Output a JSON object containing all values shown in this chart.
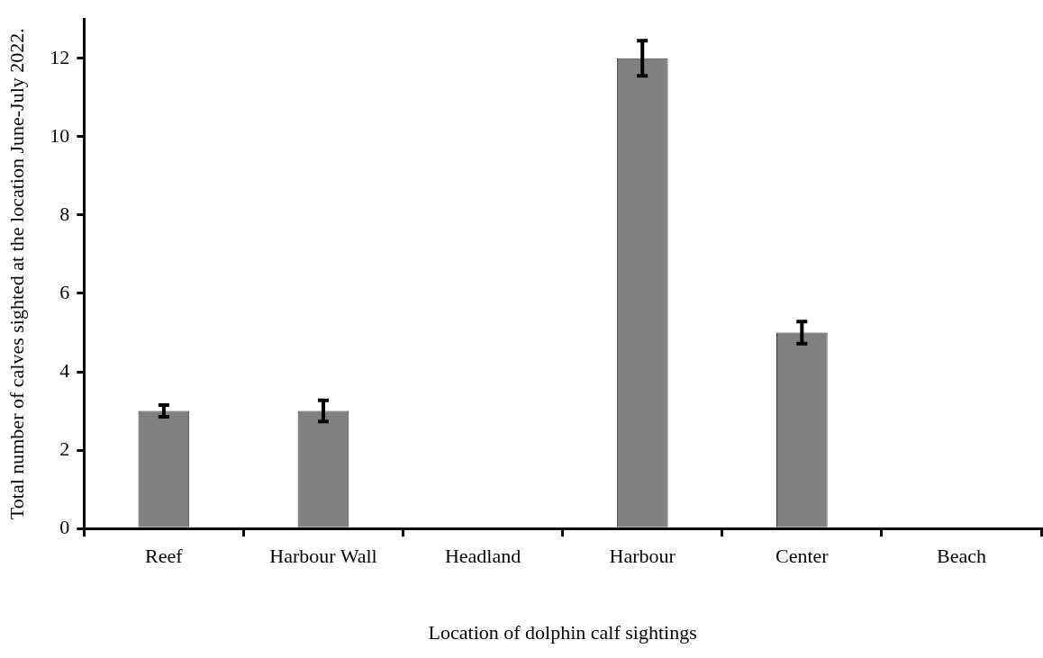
{
  "chart_data": {
    "type": "bar",
    "xlabel": "Location of dolphin calf sightings",
    "ylabel": "Total number of calves sighted at the location June-July 2022.",
    "categories": [
      "Reef",
      "Harbour Wall",
      "Headland",
      "Harbour",
      "Center",
      "Beach"
    ],
    "values": [
      3,
      3,
      0,
      12,
      5,
      0
    ],
    "errors": [
      0.15,
      0.27,
      null,
      0.45,
      0.28,
      null
    ],
    "color": "#808080",
    "ylim": [
      0,
      13
    ],
    "yticks": [
      0,
      2,
      4,
      6,
      8,
      10,
      12
    ],
    "grid": false,
    "legend": false
  }
}
